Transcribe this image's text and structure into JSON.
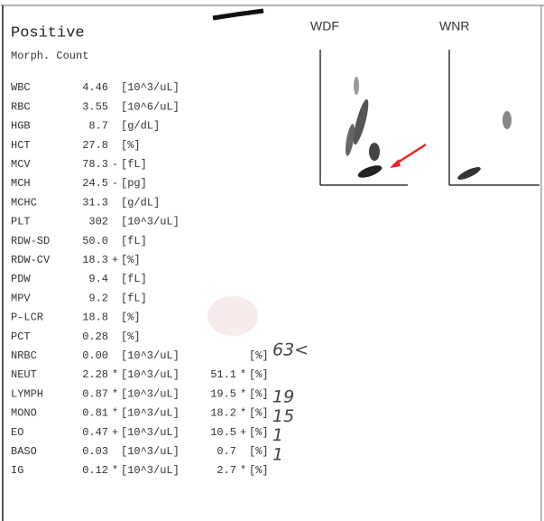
{
  "header": {
    "title": "Positive",
    "subtitle": "Morph. Count"
  },
  "plots": [
    {
      "label": "WDF"
    },
    {
      "label": "WNR"
    }
  ],
  "rows": [
    {
      "name": "WBC",
      "value": "4.46",
      "unit": "[10^3/uL]"
    },
    {
      "name": "RBC",
      "value": "3.55",
      "unit": "[10^6/uL]"
    },
    {
      "name": "HGB",
      "value": "8.7",
      "unit": "[g/dL]"
    },
    {
      "name": "HCT",
      "value": "27.8",
      "unit": "[%]"
    },
    {
      "name": "MCV",
      "value": "78.3",
      "flag": "-",
      "unit": "[fL]"
    },
    {
      "name": "MCH",
      "value": "24.5",
      "flag": "-",
      "unit": "[pg]"
    },
    {
      "name": "MCHC",
      "value": "31.3",
      "unit": "[g/dL]"
    },
    {
      "name": "PLT",
      "value": "302",
      "unit": "[10^3/uL]"
    },
    {
      "name": "RDW-SD",
      "value": "50.0",
      "unit": "[fL]"
    },
    {
      "name": "RDW-CV",
      "value": "18.3",
      "flag": "+",
      "unit": "[%]"
    },
    {
      "name": "PDW",
      "value": "9.4",
      "unit": "[fL]"
    },
    {
      "name": "MPV",
      "value": "9.2",
      "unit": "[fL]"
    },
    {
      "name": "P-LCR",
      "value": "18.8",
      "unit": "[%]"
    },
    {
      "name": "PCT",
      "value": "0.28",
      "unit": "[%]"
    },
    {
      "name": "NRBC",
      "value": "0.00",
      "unit": "[10^3/uL]",
      "pct_unit": "[%]",
      "note": "63<"
    },
    {
      "name": "NEUT",
      "value": "2.28",
      "flag": "*",
      "unit": "[10^3/uL]",
      "pct": "51.1",
      "pct_flag": "*",
      "pct_unit": "[%]"
    },
    {
      "name": "LYMPH",
      "value": "0.87",
      "flag": "*",
      "unit": "[10^3/uL]",
      "pct": "19.5",
      "pct_flag": "*",
      "pct_unit": "[%]",
      "note": "19"
    },
    {
      "name": "MONO",
      "value": "0.81",
      "flag": "*",
      "unit": "[10^3/uL]",
      "pct": "18.2",
      "pct_flag": "*",
      "pct_unit": "[%]",
      "note": "15"
    },
    {
      "name": "EO",
      "value": "0.47",
      "flag": "+",
      "unit": "[10^3/uL]",
      "pct": "10.5",
      "pct_flag": "+",
      "pct_unit": "[%]",
      "note": "1"
    },
    {
      "name": "BASO",
      "value": "0.03",
      "unit": "[10^3/uL]",
      "pct": "0.7",
      "pct_unit": "[%]",
      "note": "1"
    },
    {
      "name": "IG",
      "value": "0.12",
      "flag": "*",
      "unit": "[10^3/uL]",
      "pct": "2.7",
      "pct_flag": "*",
      "pct_unit": "[%]"
    }
  ]
}
